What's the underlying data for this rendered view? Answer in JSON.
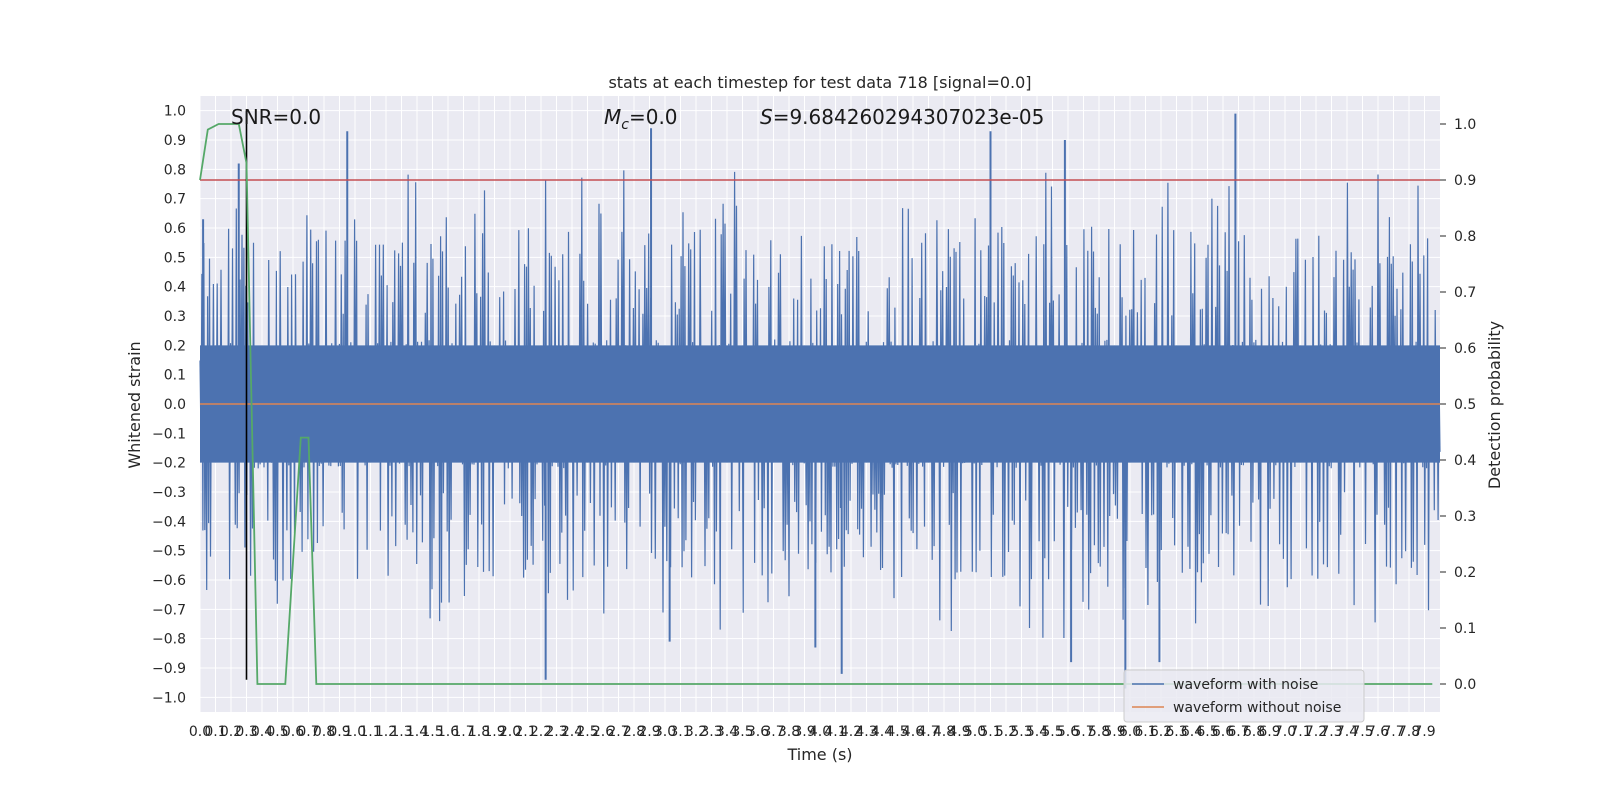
{
  "chart_data": {
    "type": "line",
    "title": "stats at each timestep for test data 718 [signal=0.0]",
    "xlabel": "Time (s)",
    "ylabel_left": "Whitened strain",
    "ylabel_right": "Detection probability",
    "xlim": [
      0.0,
      8.0
    ],
    "ylim_left": [
      -1.05,
      1.05
    ],
    "ylim_right": [
      -0.05,
      1.05
    ],
    "x_ticks": [
      0.0,
      0.1,
      0.2,
      0.3,
      0.4,
      0.5,
      0.6,
      0.7,
      0.8,
      0.9,
      1.0,
      1.1,
      1.2,
      1.3,
      1.4,
      1.5,
      1.6,
      1.7,
      1.8,
      1.9,
      2.0,
      2.1,
      2.2,
      2.3,
      2.4,
      2.5,
      2.6,
      2.7,
      2.8,
      2.9,
      3.0,
      3.1,
      3.2,
      3.3,
      3.4,
      3.5,
      3.6,
      3.7,
      3.8,
      3.9,
      4.0,
      4.1,
      4.2,
      4.3,
      4.4,
      4.5,
      4.6,
      4.7,
      4.8,
      4.9,
      5.0,
      5.1,
      5.2,
      5.3,
      5.4,
      5.5,
      5.6,
      5.7,
      5.8,
      5.9,
      6.0,
      6.1,
      6.2,
      6.3,
      6.4,
      6.5,
      6.6,
      6.7,
      6.8,
      6.9,
      7.0,
      7.1,
      7.2,
      7.3,
      7.4,
      7.5,
      7.6,
      7.7,
      7.8,
      7.9
    ],
    "x_tick_labels": [
      "0.0",
      "0.1",
      "0.2",
      "0.3",
      "0.4",
      "0.5",
      "0.6",
      "0.7",
      "0.8",
      "0.9",
      "1.0",
      "1.1",
      "1.2",
      "1.3",
      "1.4",
      "1.5",
      "1.6",
      "1.7",
      "1.8",
      "1.9",
      "2.0",
      "2.1",
      "2.2",
      "2.3",
      "2.4",
      "2.5",
      "2.6",
      "2.7",
      "2.8",
      "2.9",
      "3.0",
      "3.1",
      "3.2",
      "3.3",
      "3.4",
      "3.5",
      "3.6",
      "3.7",
      "3.8",
      "3.9",
      "4.0",
      "4.1",
      "4.2",
      "4.3",
      "4.4",
      "4.5",
      "4.6",
      "4.7",
      "4.8",
      "4.9",
      "5.0",
      "5.1",
      "5.2",
      "5.3",
      "5.4",
      "5.5",
      "5.6",
      "5.7",
      "5.8",
      "5.9",
      "6.0",
      "6.1",
      "6.2",
      "6.3",
      "6.4",
      "6.5",
      "6.6",
      "6.7",
      "6.8",
      "6.9",
      "7.0",
      "7.1",
      "7.2",
      "7.3",
      "7.4",
      "7.5",
      "7.6",
      "7.7",
      "7.8",
      "7.9"
    ],
    "y_ticks_left": [
      1.0,
      0.9,
      0.8,
      0.7,
      0.6,
      0.5,
      0.4,
      0.3,
      0.2,
      0.1,
      0.0,
      -0.1,
      -0.2,
      -0.3,
      -0.4,
      -0.5,
      -0.6,
      -0.7,
      -0.8,
      -0.9,
      -1.0
    ],
    "y_tick_labels_left": [
      "1.0",
      "0.9",
      "0.8",
      "0.7",
      "0.6",
      "0.5",
      "0.4",
      "0.3",
      "0.2",
      "0.1",
      "0.0",
      "−0.1",
      "−0.2",
      "−0.3",
      "−0.4",
      "−0.5",
      "−0.6",
      "−0.7",
      "−0.8",
      "−0.9",
      "−1.0"
    ],
    "y_ticks_right": [
      1.0,
      0.9,
      0.8,
      0.7,
      0.6,
      0.5,
      0.4,
      0.3,
      0.2,
      0.1,
      0.0
    ],
    "y_tick_labels_right": [
      "1.0",
      "0.9",
      "0.8",
      "0.7",
      "0.6",
      "0.5",
      "0.4",
      "0.3",
      "0.2",
      "0.1",
      "0.0"
    ],
    "grid": true,
    "annotations": {
      "snr": "SNR=0.0",
      "mc_symbol": "M",
      "mc_subscript": "c",
      "mc_value": "=0.0",
      "s_symbol": "S",
      "s_value": "=9.684260294307023e-05"
    },
    "legend": {
      "placement": "lower-right",
      "entries": [
        {
          "label": "waveform with noise",
          "color": "#4c72b0"
        },
        {
          "label": "waveform without noise",
          "color": "#dd8452"
        }
      ]
    },
    "series": [
      {
        "name": "waveform with noise",
        "axis": "left",
        "color": "#4c72b0",
        "style": "dense-noise",
        "core_amplitude": 0.2,
        "typical_peak_range": [
          0.3,
          0.6
        ],
        "notable_peaks": [
          {
            "x": 0.95,
            "y": 0.93
          },
          {
            "x": 2.91,
            "y": 0.94
          },
          {
            "x": 5.1,
            "y": 0.93
          },
          {
            "x": 5.58,
            "y": 0.9
          },
          {
            "x": 6.68,
            "y": 0.99
          },
          {
            "x": 0.25,
            "y": 0.82
          },
          {
            "x": 0.02,
            "y": 0.63
          },
          {
            "x": 2.23,
            "y": -0.94
          },
          {
            "x": 4.14,
            "y": -0.92
          },
          {
            "x": 5.62,
            "y": -0.88
          },
          {
            "x": 5.97,
            "y": -0.97
          },
          {
            "x": 6.19,
            "y": -0.88
          },
          {
            "x": 3.03,
            "y": -0.81
          },
          {
            "x": 3.97,
            "y": -0.83
          }
        ]
      },
      {
        "name": "waveform without noise",
        "axis": "left",
        "color": "#dd8452",
        "x": [
          0.0,
          8.0
        ],
        "y": [
          0.0,
          0.0
        ]
      },
      {
        "axis": "right",
        "color": "#55a868",
        "x": [
          0.0,
          0.05,
          0.12,
          0.25,
          0.3,
          0.37,
          0.45,
          0.55,
          0.65,
          0.7,
          0.75,
          0.8,
          7.95
        ],
        "y": [
          0.9,
          0.99,
          1.0,
          1.0,
          0.93,
          0.0,
          0.0,
          0.0,
          0.44,
          0.44,
          0.0,
          0.0,
          0.0
        ]
      }
    ],
    "reference_lines": [
      {
        "axis": "right",
        "orientation": "horizontal",
        "value": 0.9,
        "color": "#c44e52"
      },
      {
        "axis": "left",
        "orientation": "vertical",
        "value": 0.3,
        "range": [
          -0.94,
          1.0
        ],
        "color": "#000000"
      }
    ]
  }
}
